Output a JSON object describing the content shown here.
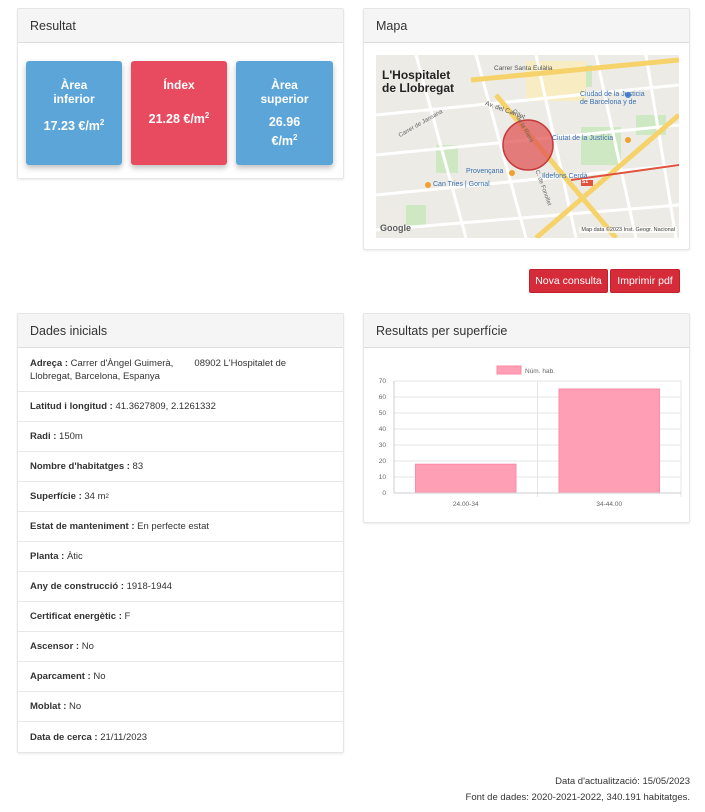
{
  "resultat": {
    "title": "Resultat",
    "cards": [
      {
        "label_1": "Àrea",
        "label_2": "inferior",
        "value": "17.23 €/m",
        "unit_sup": "2",
        "color": "#5ca5d8"
      },
      {
        "label_1": "Índex",
        "value": "21.28 €/m",
        "unit_sup": "2",
        "color": "#e84a5f"
      },
      {
        "label_1": "Àrea",
        "label_2": "superior",
        "value_1": "26.96",
        "value_2": "€/m",
        "unit_sup": "2",
        "color": "#5ca5d8"
      }
    ]
  },
  "mapa": {
    "title": "Mapa",
    "city_1": "L'Hospitalet",
    "city_2": "de Llobregat",
    "streets": [
      "Carrer Santa Eulàlia",
      "Carrer de Jansana",
      "Av. del Carrilet",
      "C. de la Riera",
      "C. de Fonollet"
    ],
    "places": [
      "Ciudad de la Justicia",
      "de Barcelona y de",
      "Ciutat de la Justícia",
      "Provençana",
      "Ildefons Cerdà",
      "Can Tries | Gornal"
    ],
    "metro_badge": "S1",
    "google_logo": "Google",
    "attribution": "Map data ©2023 Inst. Geogr. Nacional"
  },
  "actions": {
    "new_query": "Nova consulta",
    "print_pdf": "Imprimir pdf"
  },
  "dades": {
    "title": "Dades inicials",
    "rows": [
      {
        "label": "Adreça :",
        "value_1": " Carrer d'Àngel Guimerà,        08902 L'Hospitalet de",
        "value_2": "Llobregat, Barcelona, Espanya"
      },
      {
        "label": "Latitud i longitud :",
        "value": " 41.3627809, 2.1261332"
      },
      {
        "label": "Radi :",
        "value": " 150m"
      },
      {
        "label": "Nombre d'habitatges :",
        "value": " 83"
      },
      {
        "label": "Superfície :",
        "value": " 34 m",
        "sup": "2"
      },
      {
        "label": "Estat de manteniment :",
        "value": " En perfecte estat"
      },
      {
        "label": "Planta :",
        "value": " Àtic"
      },
      {
        "label": "Any de construcció :",
        "value": " 1918-1944"
      },
      {
        "label": "Certificat energètic :",
        "value": " F"
      },
      {
        "label": "Ascensor :",
        "value": " No"
      },
      {
        "label": "Aparcament :",
        "value": " No"
      },
      {
        "label": "Moblat :",
        "value": " No"
      },
      {
        "label": "Data de cerca :",
        "value": " 21/11/2023"
      }
    ]
  },
  "chart_panel": {
    "title": "Resultats per superfície"
  },
  "chart_data": {
    "type": "bar",
    "categories": [
      "24.00-34",
      "34-44.00"
    ],
    "series": [
      {
        "name": "Núm. hab.",
        "values": [
          18,
          65
        ]
      }
    ],
    "ylim": [
      0,
      70
    ],
    "yticks": [
      "0",
      "10",
      "20",
      "30",
      "40",
      "50",
      "60",
      "70"
    ],
    "grid": true,
    "legend": "top",
    "bar_color": "#ff9fb6",
    "bar_border": "#ff8aa5"
  },
  "footer": {
    "updated": "Data d'actualització: 15/05/2023",
    "source": "Font de dades: 2020-2021-2022, 340.191 habitatges."
  }
}
